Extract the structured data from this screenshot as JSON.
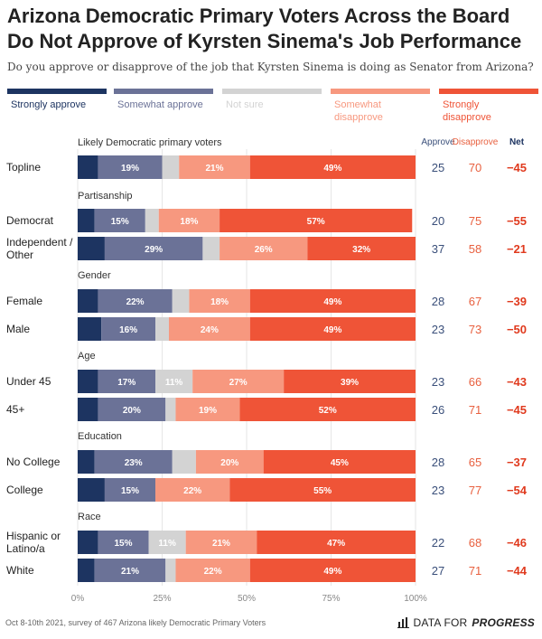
{
  "title": "Arizona Democratic Primary Voters Across the Board Do Not Approve of Kyrsten Sinema's Job Performance",
  "subtitle": "Do you approve or disapprove of the job that Kyrsten Sinema is doing as Senator from Arizona?",
  "source": "Oct 8-10th 2021, survey of 467 Arizona likely Democratic Primary Voters",
  "brand": {
    "prefix": "DATA FOR",
    "name": "PROGRESS"
  },
  "colors": {
    "Strongly approve": "#1d3461",
    "Somewhat approve": "#6b7297",
    "Not sure": "#d3d3d3",
    "Somewhat disapprove": "#f7987f",
    "Strongly disapprove": "#ef5437",
    "approve_text": "#3a4f7a",
    "disapprove_text": "#e8603f",
    "net_text": "#e03a1e"
  },
  "chart_data": {
    "type": "bar",
    "orientation": "horizontal",
    "stacked": true,
    "legend_position": "top",
    "legend": [
      "Strongly approve",
      "Somewhat approve",
      "Not sure",
      "Somewhat disapprove",
      "Strongly disapprove"
    ],
    "legend_display": [
      [
        "Strongly approve"
      ],
      [
        "Somewhat approve"
      ],
      [
        "Not sure"
      ],
      [
        "Somewhat",
        "disapprove"
      ],
      [
        "Strongly",
        "disapprove"
      ]
    ],
    "xlim": [
      0,
      100
    ],
    "x_ticks": [
      "0%",
      "25%",
      "50%",
      "75%",
      "100%"
    ],
    "summary_headers": {
      "approve": "Approve",
      "disapprove": "Disapprove",
      "net": "Net"
    },
    "groups": [
      {
        "name": "Likely Democratic primary voters",
        "rows": [
          {
            "label": [
              "Topline"
            ],
            "values": [
              6,
              19,
              5,
              21,
              49
            ],
            "approve": "25",
            "disapprove": "70",
            "net": "−45"
          }
        ]
      },
      {
        "name": "Partisanship",
        "rows": [
          {
            "label": [
              "Democrat"
            ],
            "values": [
              5,
              15,
              4,
              18,
              57
            ],
            "approve": "20",
            "disapprove": "75",
            "net": "−55"
          },
          {
            "label": [
              "Independent /",
              "Other"
            ],
            "values": [
              8,
              29,
              5,
              26,
              32
            ],
            "approve": "37",
            "disapprove": "58",
            "net": "−21"
          }
        ]
      },
      {
        "name": "Gender",
        "rows": [
          {
            "label": [
              "Female"
            ],
            "values": [
              6,
              22,
              5,
              18,
              49
            ],
            "approve": "28",
            "disapprove": "67",
            "net": "−39"
          },
          {
            "label": [
              "Male"
            ],
            "values": [
              7,
              16,
              4,
              24,
              49
            ],
            "approve": "23",
            "disapprove": "73",
            "net": "−50"
          }
        ]
      },
      {
        "name": "Age",
        "rows": [
          {
            "label": [
              "Under 45"
            ],
            "values": [
              6,
              17,
              11,
              27,
              39
            ],
            "approve": "23",
            "disapprove": "66",
            "net": "−43"
          },
          {
            "label": [
              "45+"
            ],
            "values": [
              6,
              20,
              3,
              19,
              52
            ],
            "approve": "26",
            "disapprove": "71",
            "net": "−45"
          }
        ]
      },
      {
        "name": "Education",
        "rows": [
          {
            "label": [
              "No College"
            ],
            "values": [
              5,
              23,
              7,
              20,
              45
            ],
            "approve": "28",
            "disapprove": "65",
            "net": "−37"
          },
          {
            "label": [
              "College"
            ],
            "values": [
              8,
              15,
              0,
              22,
              55
            ],
            "approve": "23",
            "disapprove": "77",
            "net": "−54"
          }
        ]
      },
      {
        "name": "Race",
        "rows": [
          {
            "label": [
              "Hispanic or",
              "Latino/a"
            ],
            "values": [
              6,
              15,
              11,
              21,
              47
            ],
            "approve": "22",
            "disapprove": "68",
            "net": "−46"
          },
          {
            "label": [
              "White"
            ],
            "values": [
              5,
              21,
              3,
              22,
              49
            ],
            "approve": "27",
            "disapprove": "71",
            "net": "−44"
          }
        ]
      }
    ]
  }
}
